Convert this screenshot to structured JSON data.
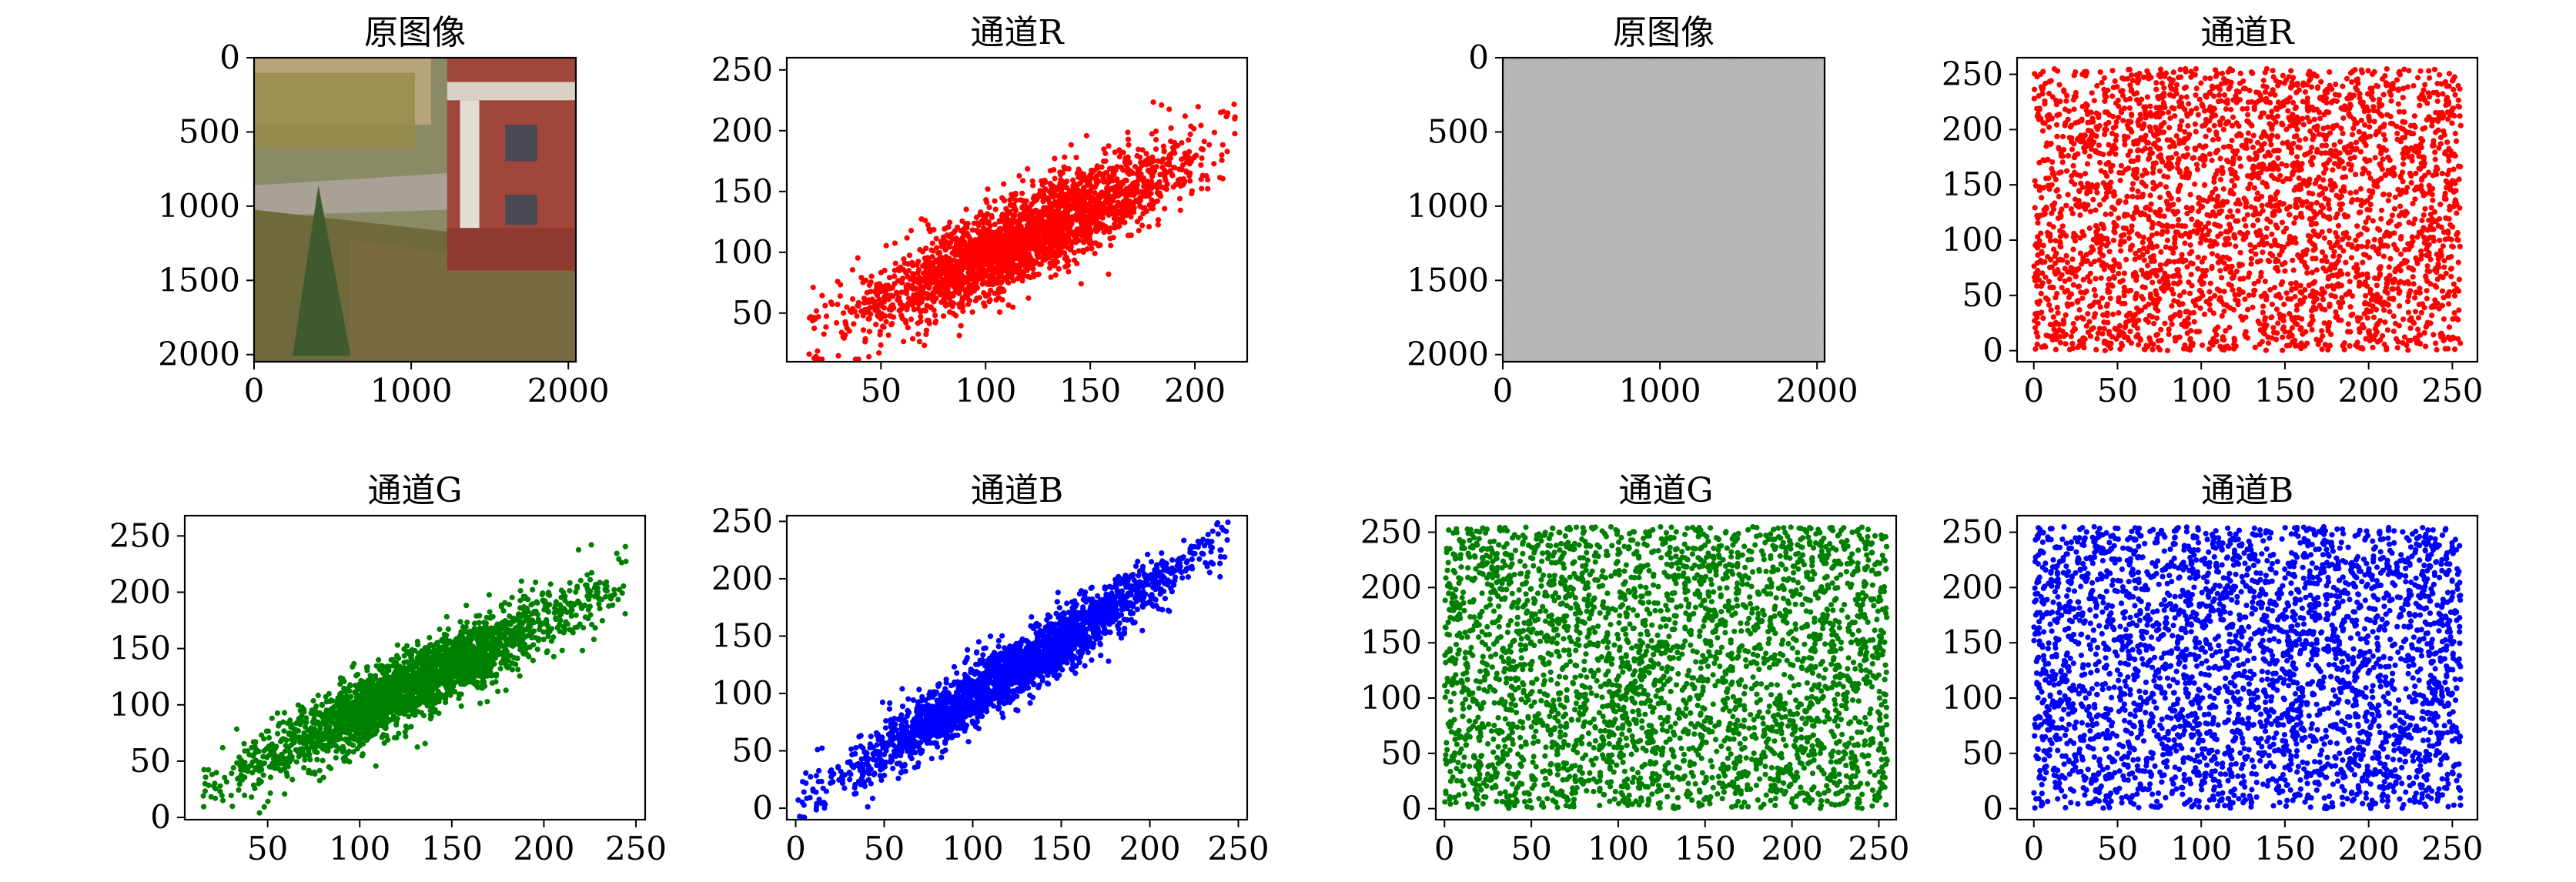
{
  "figure": {
    "description_note": ""
  },
  "panels": [
    {
      "id": "orig-image",
      "kind": "image",
      "title": "原图像",
      "image_label": "campus scene photograph",
      "xticks": [
        "0",
        "1000",
        "2000"
      ],
      "yticks": [
        "0",
        "500",
        "1000",
        "1500",
        "2000"
      ],
      "xlim": [
        0,
        2048
      ],
      "ylim": [
        0,
        2048
      ]
    },
    {
      "id": "orig-r",
      "kind": "scatter",
      "title": "通道R",
      "color": "#ff0000",
      "xlim": [
        5,
        225
      ],
      "ylim": [
        10,
        260
      ],
      "xticks": [
        50,
        100,
        150,
        200
      ],
      "yticks": [
        50,
        100,
        150,
        200,
        250
      ],
      "pattern": "correlated",
      "x_range": [
        15,
        220
      ],
      "slope": 0.78,
      "intercept": 20,
      "spread": 18
    },
    {
      "id": "enc-image",
      "kind": "image",
      "title": "原图像",
      "image_label": "gray noise image",
      "xticks": [
        "0",
        "1000",
        "2000"
      ],
      "yticks": [
        "0",
        "500",
        "1000",
        "1500",
        "2000"
      ],
      "xlim": [
        0,
        2048
      ],
      "ylim": [
        0,
        2048
      ]
    },
    {
      "id": "enc-r",
      "kind": "scatter",
      "title": "通道R",
      "color": "#ff0000",
      "xlim": [
        -10,
        265
      ],
      "ylim": [
        -10,
        265
      ],
      "xticks": [
        0,
        50,
        100,
        150,
        200,
        250
      ],
      "yticks": [
        0,
        50,
        100,
        150,
        200,
        250
      ],
      "pattern": "uniform",
      "x_range": [
        0,
        255
      ],
      "y_range": [
        0,
        255
      ]
    },
    {
      "id": "orig-g",
      "kind": "scatter",
      "title": "通道G",
      "color": "#008000",
      "xlim": [
        5,
        255
      ],
      "ylim": [
        -2,
        268
      ],
      "xticks": [
        50,
        100,
        150,
        200,
        250
      ],
      "yticks": [
        0,
        50,
        100,
        150,
        200,
        250
      ],
      "pattern": "correlated",
      "x_range": [
        15,
        245
      ],
      "slope": 0.82,
      "intercept": 12,
      "spread": 15
    },
    {
      "id": "orig-b",
      "kind": "scatter",
      "title": "通道B",
      "color": "#0000ff",
      "xlim": [
        -5,
        255
      ],
      "ylim": [
        -10,
        255
      ],
      "xticks": [
        0,
        50,
        100,
        150,
        200,
        250
      ],
      "yticks": [
        0,
        50,
        100,
        150,
        200,
        250
      ],
      "pattern": "correlated",
      "x_range": [
        0,
        245
      ],
      "slope": 0.95,
      "intercept": 3,
      "spread": 13
    },
    {
      "id": "enc-g",
      "kind": "scatter",
      "title": "通道G",
      "color": "#008000",
      "xlim": [
        -5,
        260
      ],
      "ylim": [
        -10,
        265
      ],
      "xticks": [
        0,
        50,
        100,
        150,
        200,
        250
      ],
      "yticks": [
        0,
        50,
        100,
        150,
        200,
        250
      ],
      "pattern": "uniform",
      "x_range": [
        0,
        255
      ],
      "y_range": [
        0,
        255
      ]
    },
    {
      "id": "enc-b",
      "kind": "scatter",
      "title": "通道B",
      "color": "#0000ff",
      "xlim": [
        -10,
        265
      ],
      "ylim": [
        -10,
        265
      ],
      "xticks": [
        0,
        50,
        100,
        150,
        200,
        250
      ],
      "yticks": [
        0,
        50,
        100,
        150,
        200,
        250
      ],
      "pattern": "uniform",
      "x_range": [
        0,
        255
      ],
      "y_range": [
        0,
        255
      ]
    }
  ],
  "chart_data": [
    {
      "type": "image",
      "title": "原图像",
      "xlim": [
        0,
        2048
      ],
      "ylim": [
        0,
        2048
      ]
    },
    {
      "type": "scatter",
      "title": "通道R",
      "xlim": [
        5,
        225
      ],
      "ylim": [
        10,
        260
      ],
      "trend": "strong positive correlation, y≈0.78x+20"
    },
    {
      "type": "image",
      "title": "原图像",
      "xlim": [
        0,
        2048
      ],
      "ylim": [
        0,
        2048
      ]
    },
    {
      "type": "scatter",
      "title": "通道R",
      "xlim": [
        -10,
        265
      ],
      "ylim": [
        -10,
        265
      ],
      "trend": "uniform over [0,255]x[0,255]"
    },
    {
      "type": "scatter",
      "title": "通道G",
      "xlim": [
        5,
        255
      ],
      "ylim": [
        -2,
        268
      ],
      "trend": "strong positive correlation, y≈0.82x+12"
    },
    {
      "type": "scatter",
      "title": "通道B",
      "xlim": [
        -5,
        255
      ],
      "ylim": [
        -10,
        255
      ],
      "trend": "strong positive correlation, y≈0.95x+3"
    },
    {
      "type": "scatter",
      "title": "通道G",
      "xlim": [
        -5,
        260
      ],
      "ylim": [
        -10,
        265
      ],
      "trend": "uniform over [0,255]x[0,255]"
    },
    {
      "type": "scatter",
      "title": "通道B",
      "xlim": [
        -10,
        265
      ],
      "ylim": [
        -10,
        265
      ],
      "trend": "uniform over [0,255]x[0,255]"
    }
  ]
}
